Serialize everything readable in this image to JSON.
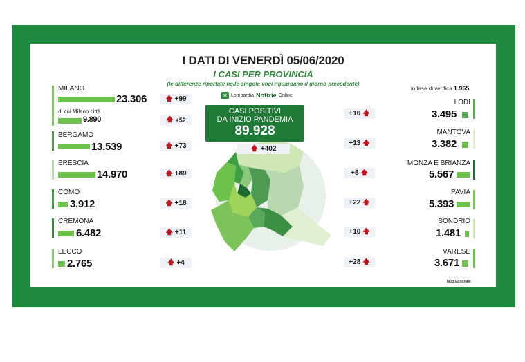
{
  "header": {
    "title": "I DATI DI VENERDÌ 05/06/2020",
    "subtitle": "I CASI PER PROVINCIA",
    "note": "(le differenze riportate nelle singole voci riguardano il giorno precedente)"
  },
  "brand": {
    "logo_char": "✕",
    "name_1": "Lombardia",
    "name_2": "Notizie",
    "name_3": "Online"
  },
  "verification": {
    "label": "in fase di verifica",
    "value": "1.965"
  },
  "total": {
    "line1": "CASI POSITIVI",
    "line2": "DA INIZIO PANDEMIA",
    "value": "89.928",
    "delta": "+402"
  },
  "milano_city": {
    "label": "di cui Milano città",
    "value": "9.890",
    "delta": "+52"
  },
  "left_provinces": [
    {
      "name": "MILANO",
      "value": "23.306",
      "delta": "+99"
    },
    {
      "name": "BERGAMO",
      "value": "13.539",
      "delta": "+73"
    },
    {
      "name": "BRESCIA",
      "value": "14.970",
      "delta": "+89"
    },
    {
      "name": "COMO",
      "value": "3.912",
      "delta": "+18"
    },
    {
      "name": "CREMONA",
      "value": "6.482",
      "delta": "+11"
    },
    {
      "name": "LECCO",
      "value": "2.765",
      "delta": "+4"
    }
  ],
  "right_provinces": [
    {
      "name": "LODI",
      "value": "3.495",
      "delta": "+10"
    },
    {
      "name": "MANTOVA",
      "value": "3.382",
      "delta": "+13"
    },
    {
      "name": "MONZA E BRIANZA",
      "value": "5.567",
      "delta": "+8"
    },
    {
      "name": "PAVIA",
      "value": "5.393",
      "delta": "+22"
    },
    {
      "name": "SONDRIO",
      "value": "1.481",
      "delta": "+10"
    },
    {
      "name": "VARESE",
      "value": "3.671",
      "delta": "+28"
    }
  ],
  "credit": "MJB Editoriale",
  "colors": {
    "frame": "#1e8a3e",
    "accent": "#2f8a3a",
    "total_box": "#1e7a36",
    "arrow": "#c0151b"
  }
}
